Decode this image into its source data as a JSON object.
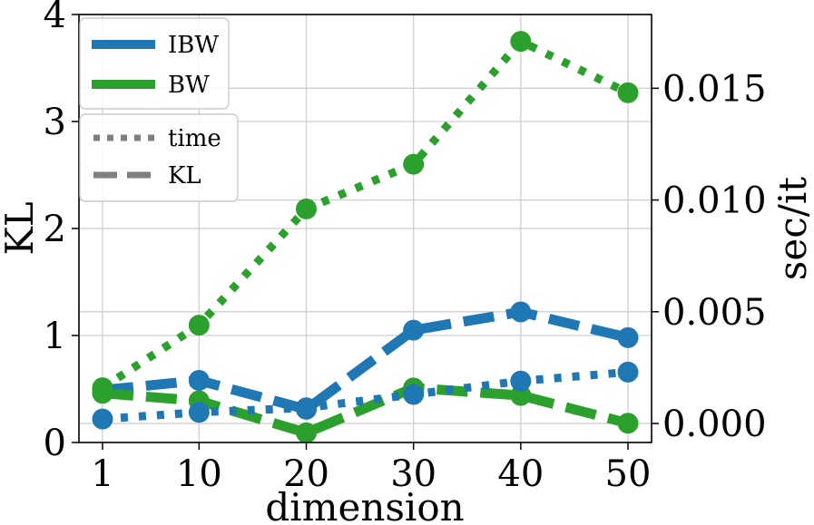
{
  "chart_data": {
    "type": "line",
    "x": [
      1,
      10,
      20,
      30,
      40,
      50
    ],
    "xlabel": "dimension",
    "ylabel_left": "KL",
    "ylabel_right": "sec/it",
    "xticks": [
      {
        "value": 1,
        "label": "1"
      },
      {
        "value": 10,
        "label": "10"
      },
      {
        "value": 20,
        "label": "20"
      },
      {
        "value": 30,
        "label": "30"
      },
      {
        "value": 40,
        "label": "40"
      },
      {
        "value": 50,
        "label": "50"
      }
    ],
    "yticks_left": [
      {
        "value": 0,
        "label": "0"
      },
      {
        "value": 1,
        "label": "1"
      },
      {
        "value": 2,
        "label": "2"
      },
      {
        "value": 3,
        "label": "3"
      },
      {
        "value": 4,
        "label": "4"
      }
    ],
    "yticks_right": [
      {
        "value": 0.0,
        "label": "0.000"
      },
      {
        "value": 0.005,
        "label": "0.005"
      },
      {
        "value": 0.01,
        "label": "0.010"
      },
      {
        "value": 0.015,
        "label": "0.015"
      }
    ],
    "xlim": [
      -1.2,
      52.2
    ],
    "ylim_left": [
      0,
      4
    ],
    "ylim_right": [
      -0.00085,
      0.0183
    ],
    "grid": true,
    "colors": {
      "IBW": "#1f77b4",
      "BW": "#2ca02c",
      "style_legend": "#7f7f7f"
    },
    "series": [
      {
        "name": "IBW",
        "metric": "KL",
        "axis": "left",
        "style": "dashed",
        "color": "#1f77b4",
        "values": [
          0.49,
          0.58,
          0.31,
          1.05,
          1.22,
          0.98
        ]
      },
      {
        "name": "BW",
        "metric": "KL",
        "axis": "left",
        "style": "dashed",
        "color": "#2ca02c",
        "values": [
          0.46,
          0.39,
          0.09,
          0.51,
          0.44,
          0.18
        ]
      },
      {
        "name": "IBW",
        "metric": "time",
        "axis": "right",
        "style": "dotted",
        "color": "#1f77b4",
        "values": [
          0.0002,
          0.0005,
          0.0007,
          0.0013,
          0.0019,
          0.0023
        ]
      },
      {
        "name": "BW",
        "metric": "time",
        "axis": "right",
        "style": "dotted",
        "color": "#2ca02c",
        "values": [
          0.0016,
          0.0044,
          0.0096,
          0.0116,
          0.0171,
          0.0148
        ]
      }
    ],
    "legend_method": {
      "position": "top-left",
      "items": [
        {
          "label": "IBW",
          "color": "#1f77b4"
        },
        {
          "label": "BW",
          "color": "#2ca02c"
        }
      ]
    },
    "legend_style": {
      "position": "upper-left",
      "items": [
        {
          "label": "time",
          "style": "dotted"
        },
        {
          "label": "KL",
          "style": "dashed"
        }
      ]
    }
  }
}
